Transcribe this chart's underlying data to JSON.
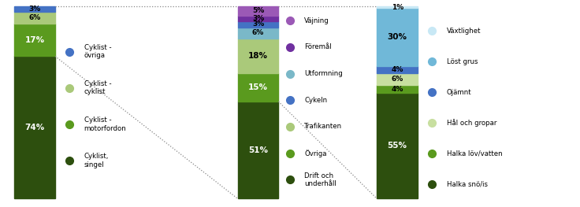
{
  "bar1": {
    "values": [
      74,
      17,
      6,
      3
    ],
    "colors": [
      "#2d4f0e",
      "#5a9a1e",
      "#aac97a",
      "#4472c4"
    ],
    "labels_white": [
      true,
      true,
      false,
      false
    ],
    "text_colors": [
      "white",
      "white",
      "black",
      "black"
    ]
  },
  "bar2": {
    "values": [
      51,
      15,
      18,
      6,
      3,
      3,
      5
    ],
    "colors": [
      "#2d4f0e",
      "#5a9a1e",
      "#aac97a",
      "#7ab8c8",
      "#4472c4",
      "#7030a0",
      "#9b59b6"
    ],
    "text_colors": [
      "white",
      "white",
      "black",
      "black",
      "black",
      "black",
      "black"
    ]
  },
  "bar3": {
    "values": [
      55,
      4,
      6,
      4,
      30,
      1
    ],
    "colors": [
      "#2d4f0e",
      "#5a9a1e",
      "#c8dfa0",
      "#4472c4",
      "#70b8d8",
      "#c8e8f5"
    ],
    "text_colors": [
      "white",
      "black",
      "black",
      "black",
      "black",
      "black"
    ]
  },
  "legend1_items": [
    {
      "label": "Cyklist -\növriga",
      "color": "#4472c4"
    },
    {
      "label": "Cyklist -\ncyklist",
      "color": "#aac97a"
    },
    {
      "label": "Cyklist -\nmotorfordon",
      "color": "#5a9a1e"
    },
    {
      "label": "Cyklist,\nsingel",
      "color": "#2d4f0e"
    }
  ],
  "legend2_items": [
    {
      "label": "Väjning",
      "color": "#9b59b6"
    },
    {
      "label": "Föremål",
      "color": "#7030a0"
    },
    {
      "label": "Utformning",
      "color": "#7ab8c8"
    },
    {
      "label": "Cykeln",
      "color": "#4472c4"
    },
    {
      "label": "Trafikanten",
      "color": "#aac97a"
    },
    {
      "label": "Övriga",
      "color": "#5a9a1e"
    },
    {
      "label": "Drift och\nunderhåll",
      "color": "#2d4f0e"
    }
  ],
  "legend3_items": [
    {
      "label": "Växtlighet",
      "color": "#c8e8f5"
    },
    {
      "label": "Löst grus",
      "color": "#70b8d8"
    },
    {
      "label": "Ojämnt",
      "color": "#4472c4"
    },
    {
      "label": "Hål och gropar",
      "color": "#c8dfa0"
    },
    {
      "label": "Halka löv/vatten",
      "color": "#5a9a1e"
    },
    {
      "label": "Halka snö/is",
      "color": "#2d4f0e"
    }
  ],
  "background_color": "#ffffff"
}
